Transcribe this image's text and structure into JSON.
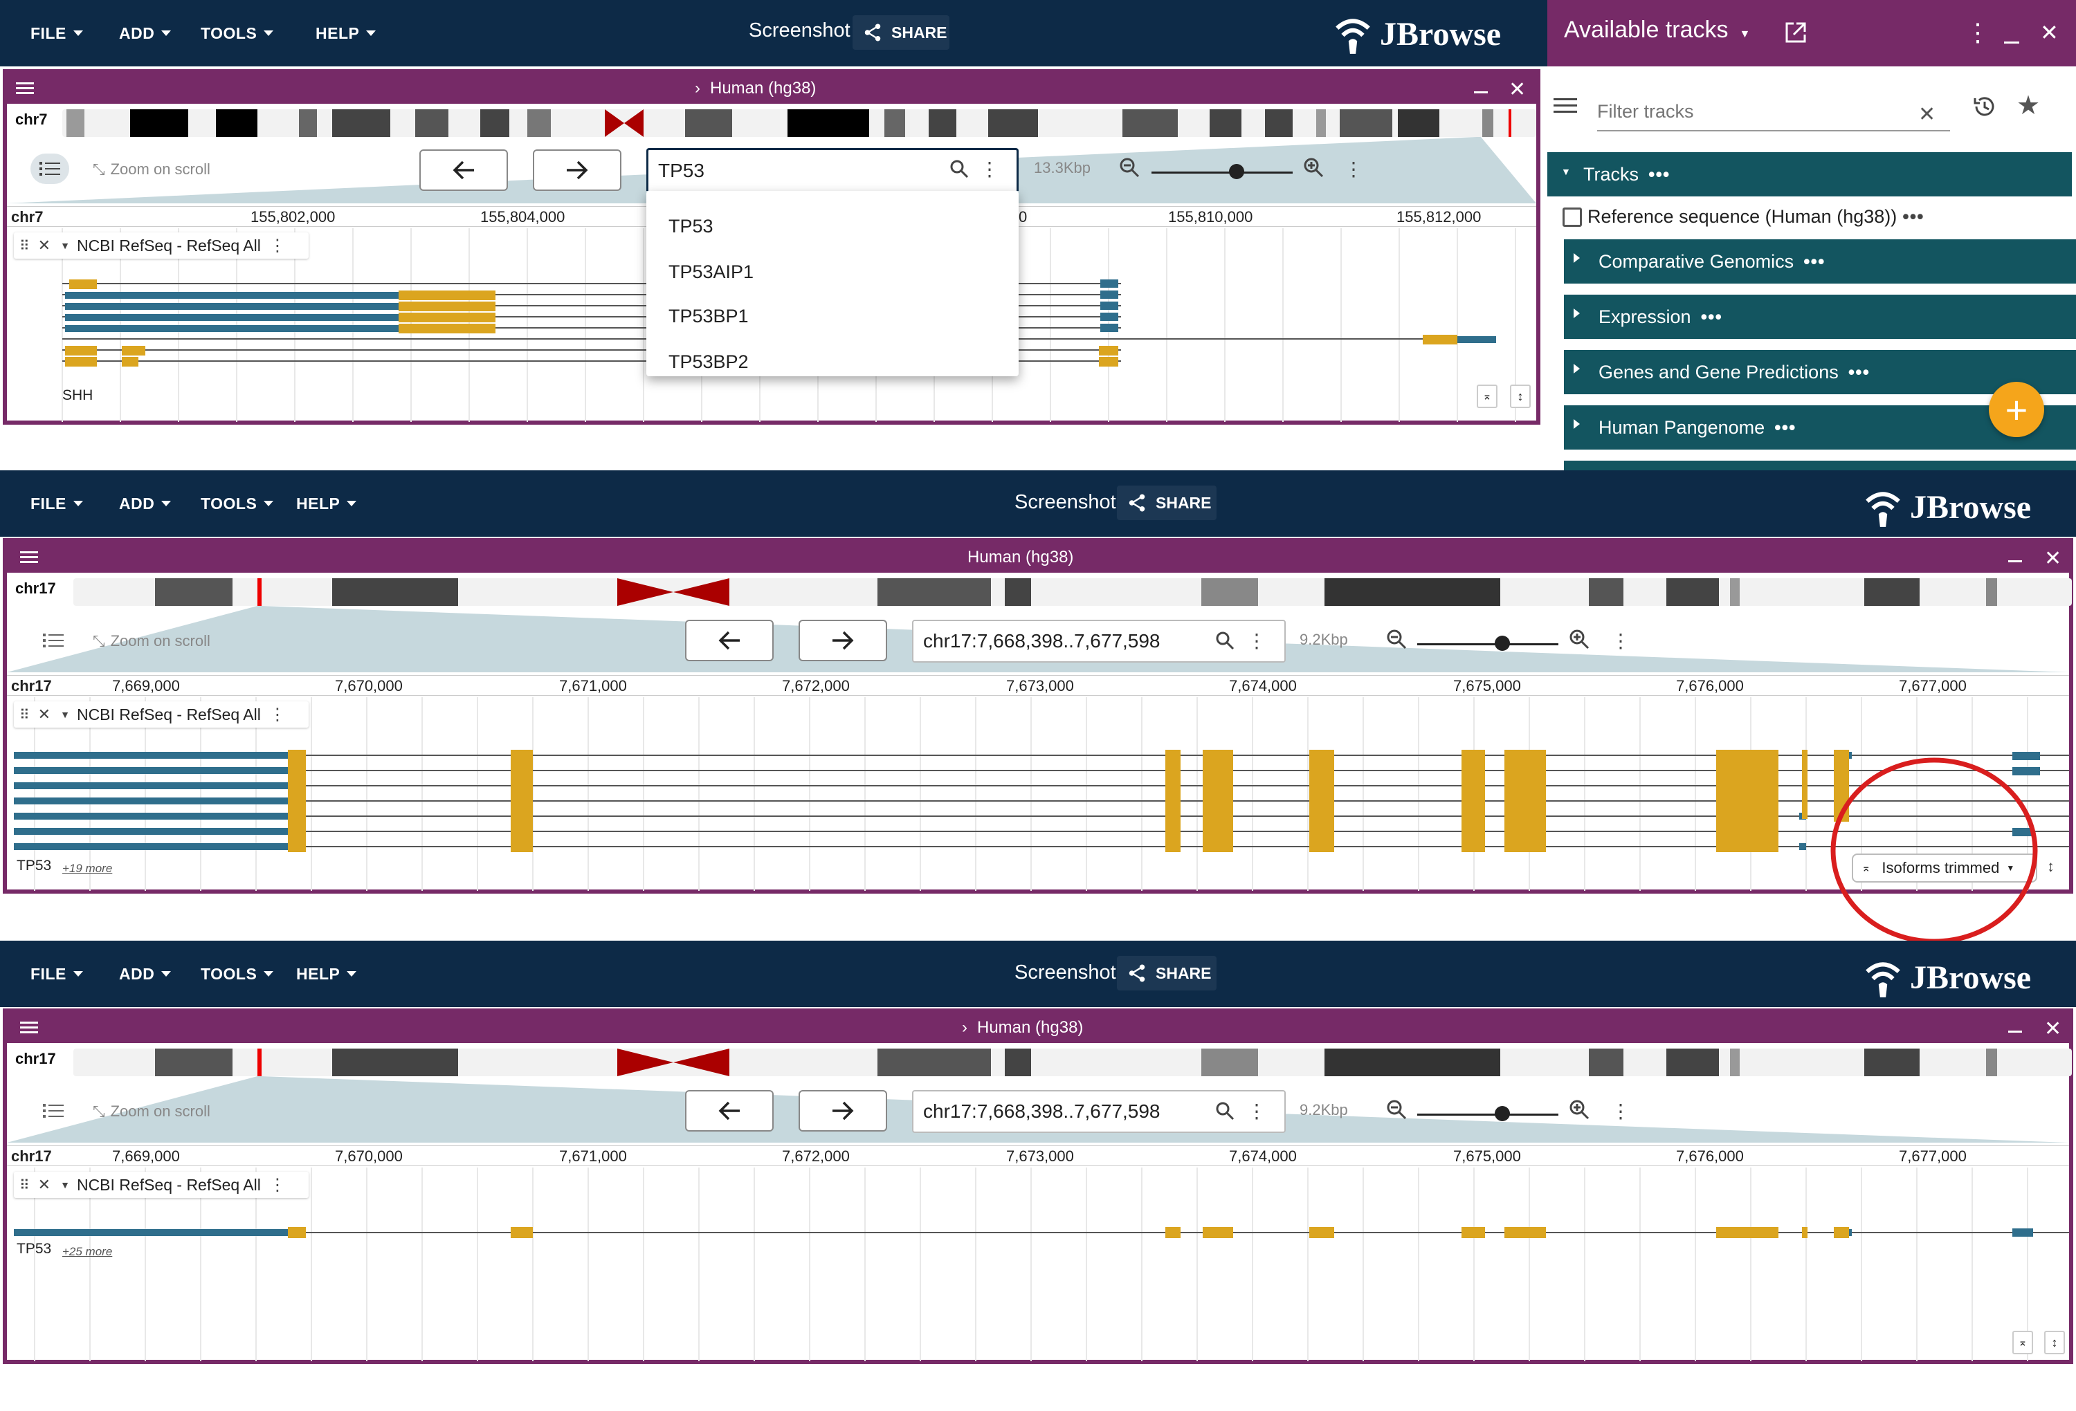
{
  "menu": {
    "file": "FILE",
    "add": "ADD",
    "tools": "TOOLS",
    "help": "HELP"
  },
  "screenshot_label": "Screenshot",
  "share_label": "SHARE",
  "logo_text": "JBrowse",
  "colors": {
    "app_bar": "#0d2a47",
    "view_header": "#762a67",
    "category": "#135560",
    "utr": "#2f6e8c",
    "cds": "#dba51f",
    "fab": "#f5a51b",
    "highlight_circle": "#d91e1e"
  },
  "panel1": {
    "assembly": "Human (hg38)",
    "chrom": "chr7",
    "zoom_on_scroll": "Zoom on scroll",
    "search_value": "TP53",
    "span": "13.3Kbp",
    "zoom_slider_level": 0.6,
    "ruler_chrom": "chr7",
    "ruler_ticks": [
      "155,802,000",
      "155,804,000",
      "155,810,000",
      "155,812,000"
    ],
    "partial_tick": "0",
    "track_name": "NCBI RefSeq - RefSeq All",
    "feature_label": "SHH",
    "suggestions": [
      "TP53",
      "TP53AIP1",
      "TP53BP1",
      "TP53BP2"
    ]
  },
  "side_panel": {
    "title": "Available tracks",
    "filter_placeholder": "Filter tracks",
    "tracks_header": "Tracks",
    "dots": "•••",
    "reference": "Reference sequence (Human (hg38))",
    "categories": [
      "Comparative Genomics",
      "Expression",
      "Genes and Gene Predictions",
      "Human Pangenome"
    ],
    "fab": "+"
  },
  "panel2": {
    "assembly": "Human (hg38)",
    "chrom": "chr17",
    "zoom_on_scroll": "Zoom on scroll",
    "location": "chr17:7,668,398..7,677,598",
    "span": "9.2Kbp",
    "zoom_slider_level": 0.6,
    "ruler_chrom": "chr17",
    "ruler_ticks": [
      "7,669,000",
      "7,670,000",
      "7,671,000",
      "7,672,000",
      "7,673,000",
      "7,674,000",
      "7,675,000",
      "7,676,000",
      "7,677,000"
    ],
    "track_name": "NCBI RefSeq - RefSeq All",
    "feature_label": "TP53",
    "more": "+19 more",
    "isoform_button": "Isoforms trimmed"
  },
  "panel3": {
    "assembly": "Human (hg38)",
    "chrom": "chr17",
    "zoom_on_scroll": "Zoom on scroll",
    "location": "chr17:7,668,398..7,677,598",
    "span": "9.2Kbp",
    "zoom_slider_level": 0.6,
    "ruler_chrom": "chr17",
    "ruler_ticks": [
      "7,669,000",
      "7,670,000",
      "7,671,000",
      "7,672,000",
      "7,673,000",
      "7,674,000",
      "7,675,000",
      "7,676,000",
      "7,677,000"
    ],
    "track_name": "NCBI RefSeq - RefSeq All",
    "feature_label": "TP53",
    "more": "+25 more"
  }
}
